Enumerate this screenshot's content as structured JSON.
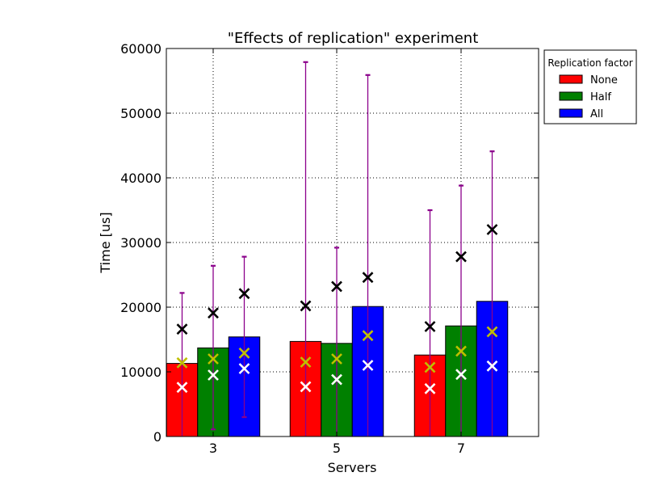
{
  "chart_data": {
    "type": "bar",
    "title": "\"Effects of replication\" experiment",
    "xlabel": "Servers",
    "ylabel": "Time [us]",
    "categories": [
      "3",
      "5",
      "7"
    ],
    "ylim": [
      0,
      60000
    ],
    "yticks": [
      "0",
      "10000",
      "20000",
      "30000",
      "40000",
      "50000",
      "60000"
    ],
    "grid": true,
    "legend": {
      "title": "Replication factor",
      "placement": "outside-top-right"
    },
    "series": [
      {
        "name": "None",
        "color": "#ff0000",
        "values": [
          11300,
          14700,
          12600
        ],
        "error_low": [
          0,
          0,
          0
        ],
        "error_high": [
          22200,
          57900,
          35000
        ],
        "marker_black": [
          16600,
          20200,
          17000
        ],
        "marker_yellow": [
          11400,
          11500,
          10700
        ],
        "marker_white": [
          7600,
          7700,
          7400
        ]
      },
      {
        "name": "Half",
        "color": "#008000",
        "values": [
          13700,
          14400,
          17100
        ],
        "error_low": [
          1100,
          0,
          0
        ],
        "error_high": [
          26400,
          29200,
          38800
        ],
        "marker_black": [
          19100,
          23200,
          27800
        ],
        "marker_yellow": [
          12000,
          12000,
          13200
        ],
        "marker_white": [
          9500,
          8800,
          9600
        ]
      },
      {
        "name": "All",
        "color": "#0000ff",
        "values": [
          15400,
          20100,
          20900
        ],
        "error_low": [
          3000,
          0,
          0
        ],
        "error_high": [
          27800,
          55900,
          44100
        ],
        "marker_black": [
          22100,
          24600,
          32000
        ],
        "marker_yellow": [
          12900,
          15600,
          16200
        ],
        "marker_white": [
          10500,
          11000,
          10900
        ]
      }
    ],
    "errorbar_color": "#8b008b",
    "marker_colors": {
      "black": "#000000",
      "yellow": "#bfbf00",
      "white": "#ffffff"
    }
  }
}
